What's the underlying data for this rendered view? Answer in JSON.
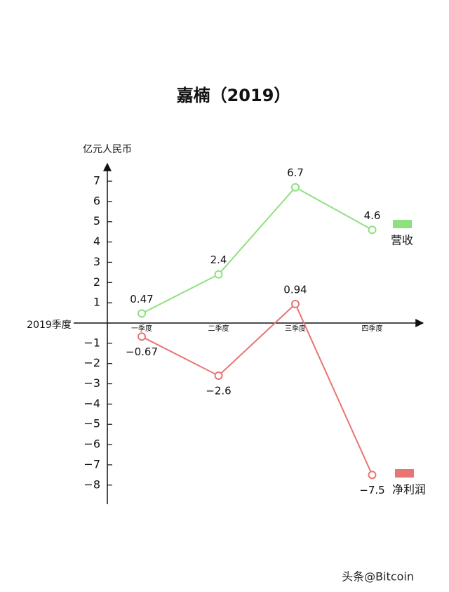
{
  "chart_data": {
    "type": "line",
    "title": "嘉楠（2019）",
    "y_label": "亿元人民币",
    "x_label": "2019季度",
    "categories": [
      "一季度",
      "二季度",
      "三季度",
      "四季度"
    ],
    "series": [
      {
        "name": "营收",
        "color": "#8fe07f",
        "values": [
          0.47,
          2.4,
          6.7,
          4.6
        ]
      },
      {
        "name": "净利润",
        "color": "#e87474",
        "values": [
          -0.67,
          -2.6,
          0.94,
          -7.5
        ],
        "value_labels": [
          "−0.67",
          "−2.6",
          "0.94",
          "−7.5"
        ]
      }
    ],
    "ylim": [
      -9,
      8
    ],
    "yticks": [
      {
        "value": -8,
        "label": "−8"
      },
      {
        "value": -7,
        "label": "−7"
      },
      {
        "value": -6,
        "label": "−6"
      },
      {
        "value": -5,
        "label": "−5"
      },
      {
        "value": -4,
        "label": "−4"
      },
      {
        "value": -3,
        "label": "−3"
      },
      {
        "value": -2,
        "label": "−2"
      },
      {
        "value": -1,
        "label": "−1"
      },
      1,
      2,
      3,
      4,
      5,
      6,
      7
    ],
    "watermark": "头条@Bitcoin"
  }
}
